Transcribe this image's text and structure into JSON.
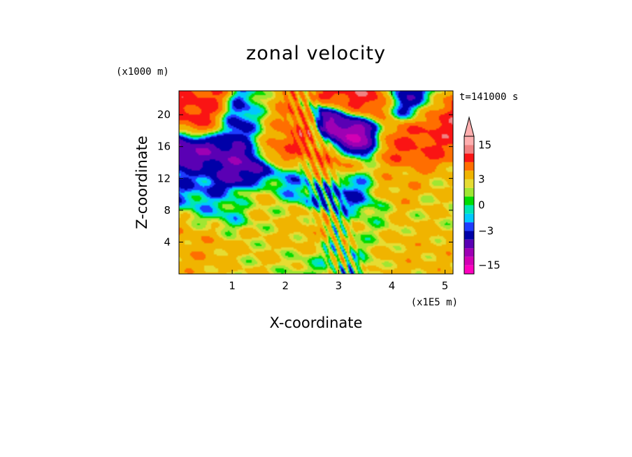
{
  "chart_data": {
    "type": "heatmap",
    "title": "zonal velocity",
    "xlabel": "X-coordinate",
    "ylabel": "Z-coordinate",
    "x_units": "(x1E5 m)",
    "y_units": "(x1000 m)",
    "time_label": "t=141000 s",
    "xlim": [
      0,
      5.15
    ],
    "ylim": [
      0,
      23
    ],
    "x_ticks": [
      1,
      2,
      3,
      4,
      5
    ],
    "y_ticks": [
      4,
      8,
      12,
      16,
      20
    ],
    "colorbar": {
      "levels": [
        -18,
        -15,
        -12,
        -9,
        -6,
        -3,
        -2,
        -1,
        0,
        1,
        2,
        3,
        6,
        9,
        12,
        15,
        18
      ],
      "colors": [
        "#ff00bf",
        "#d200b4",
        "#9e00b4",
        "#5a00b4",
        "#0000a8",
        "#1e3cff",
        "#00c8ff",
        "#00e6b4",
        "#00dc00",
        "#a0e632",
        "#e6dc32",
        "#f0b400",
        "#ff6e00",
        "#fa1414",
        "#f08282",
        "#ffafaf"
      ],
      "tick_labels": [
        {
          "value": 15,
          "label": "15"
        },
        {
          "value": 3,
          "label": "3"
        },
        {
          "value": 0,
          "label": "0"
        },
        {
          "value": -3,
          "label": "−3"
        },
        {
          "value": -15,
          "label": "−15"
        }
      ],
      "extend": "max"
    },
    "features": [
      {
        "x": 0.35,
        "z": 19.5,
        "value": 10
      },
      {
        "x": 0.2,
        "z": 15.5,
        "value": -9
      },
      {
        "x": 0.9,
        "z": 13.5,
        "value": -8
      },
      {
        "x": 0.4,
        "z": 12,
        "value": -2
      },
      {
        "x": 1.3,
        "z": 18.5,
        "value": -7
      },
      {
        "x": 1.7,
        "z": 18.5,
        "value": 8
      },
      {
        "x": 2.2,
        "z": 16.5,
        "value": 9
      },
      {
        "x": 2.7,
        "z": 14,
        "value": 7
      },
      {
        "x": 3.2,
        "z": 18,
        "value": -12
      },
      {
        "x": 3.5,
        "z": 21.5,
        "value": 11
      },
      {
        "x": 4.3,
        "z": 17,
        "value": 9
      },
      {
        "x": 4.9,
        "z": 20,
        "value": 11
      },
      {
        "x": 4.4,
        "z": 21.5,
        "value": -6
      },
      {
        "x": 4.0,
        "z": 11,
        "value": 5
      },
      {
        "x": 3.3,
        "z": 10,
        "value": -3
      },
      {
        "x": 2.2,
        "z": 11.5,
        "value": -2
      },
      {
        "x": 1.6,
        "z": 8.5,
        "value": 3
      },
      {
        "x": 0.8,
        "z": 7.5,
        "value": -1
      },
      {
        "x": 0.5,
        "z": 4.5,
        "value": 5
      },
      {
        "x": 1.4,
        "z": 3,
        "value": 3
      },
      {
        "x": 2.5,
        "z": 5,
        "value": 4
      },
      {
        "x": 3.5,
        "z": 6,
        "value": 2
      },
      {
        "x": 4.5,
        "z": 3.5,
        "value": 4
      },
      {
        "x": 4.9,
        "z": 8,
        "value": 3
      },
      {
        "x": 2.8,
        "z": 2,
        "value": 1
      }
    ]
  }
}
